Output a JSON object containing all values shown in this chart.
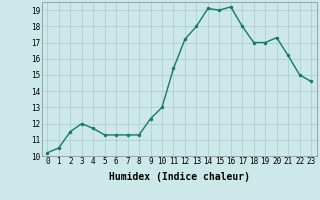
{
  "x": [
    0,
    1,
    2,
    3,
    4,
    5,
    6,
    7,
    8,
    9,
    10,
    11,
    12,
    13,
    14,
    15,
    16,
    17,
    18,
    19,
    20,
    21,
    22,
    23
  ],
  "y": [
    10.2,
    10.5,
    11.5,
    12.0,
    11.7,
    11.3,
    11.3,
    11.3,
    11.3,
    12.3,
    13.0,
    15.4,
    17.2,
    18.0,
    19.1,
    19.0,
    19.2,
    18.0,
    17.0,
    17.0,
    17.3,
    16.2,
    15.0,
    14.6
  ],
  "xlim": [
    -0.5,
    23.5
  ],
  "ylim": [
    10,
    19.5
  ],
  "yticks": [
    10,
    11,
    12,
    13,
    14,
    15,
    16,
    17,
    18,
    19
  ],
  "xticks": [
    0,
    1,
    2,
    3,
    4,
    5,
    6,
    7,
    8,
    9,
    10,
    11,
    12,
    13,
    14,
    15,
    16,
    17,
    18,
    19,
    20,
    21,
    22,
    23
  ],
  "xlabel": "Humidex (Indice chaleur)",
  "line_color": "#1a7a5e",
  "marker_color": "#1a7a5e",
  "bg_color": "#cce8e8",
  "grid_color": "#aacccc",
  "tick_fontsize": 5.5,
  "xlabel_fontsize": 7.0,
  "linewidth": 1.0,
  "markersize": 2.2
}
